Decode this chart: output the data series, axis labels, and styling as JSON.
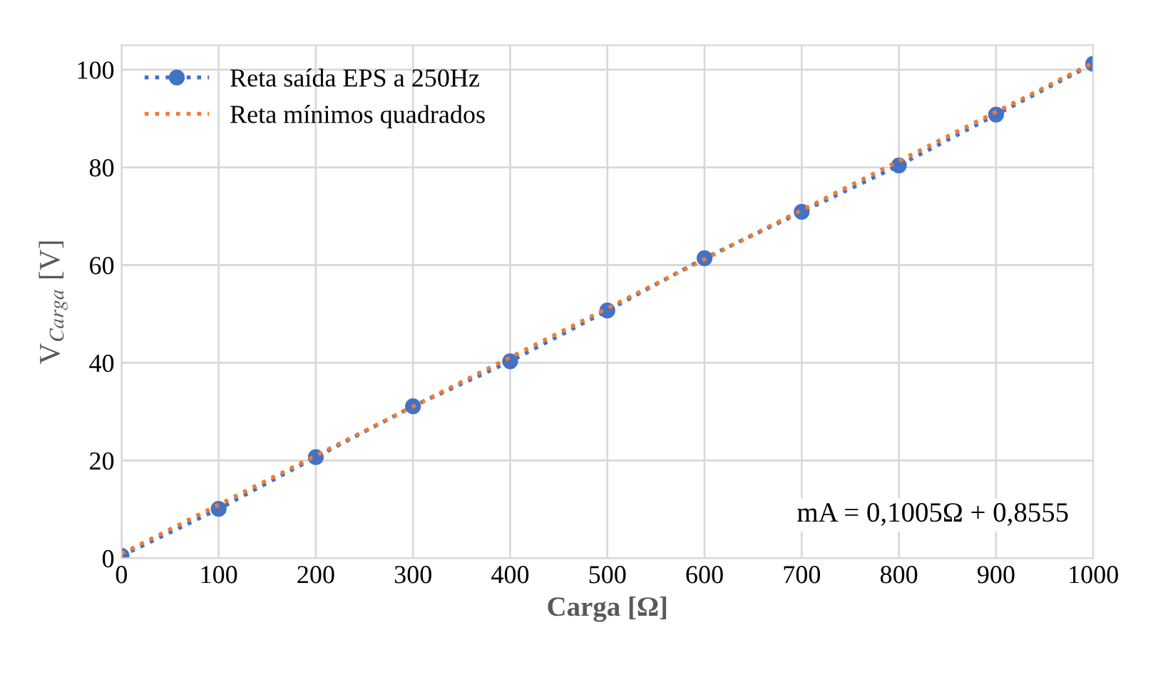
{
  "chart_data": {
    "type": "line",
    "xlabel": "Carga [Ω]",
    "ylabel": "V$_{Carga}$ [V]",
    "x": [
      0,
      100,
      200,
      300,
      400,
      500,
      600,
      700,
      800,
      900,
      1000
    ],
    "series": [
      {
        "name": "Reta saída EPS a 250Hz",
        "color": "#4472c4",
        "marker": "circle",
        "line_style": "dotted",
        "values": [
          0.5,
          10.1,
          20.7,
          31.1,
          40.3,
          50.7,
          61.4,
          70.9,
          80.4,
          90.8,
          101.2
        ]
      },
      {
        "name": "Reta mínimos quadrados",
        "color": "#ed7d31",
        "marker": "none",
        "line_style": "dotted",
        "x": [
          0,
          1000
        ],
        "values": [
          0.9,
          101.4
        ]
      }
    ],
    "xlim": [
      0,
      1000
    ],
    "xticks": [
      0,
      100,
      200,
      300,
      400,
      500,
      600,
      700,
      800,
      900,
      1000
    ],
    "ylim": [
      0,
      105
    ],
    "yticks": [
      0,
      20,
      40,
      60,
      80,
      100
    ],
    "grid": true,
    "legend": "top left",
    "annotations": [
      "mA = 0,1005Ω + 0,8555"
    ]
  }
}
